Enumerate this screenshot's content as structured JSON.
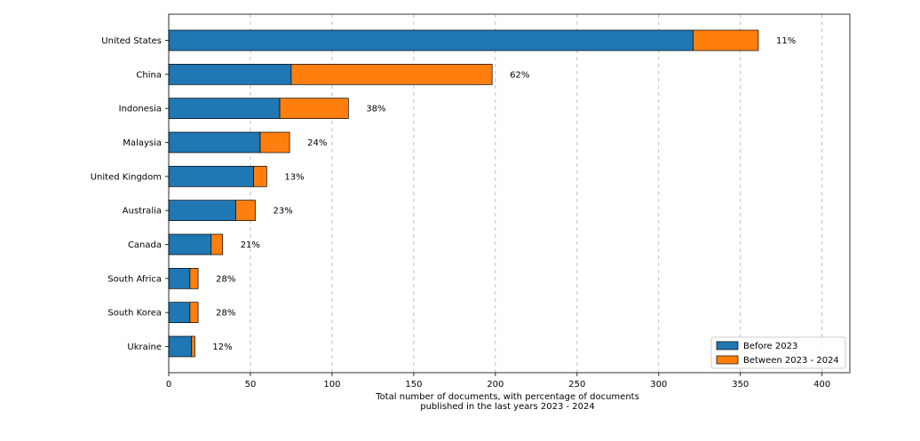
{
  "chart_data": {
    "type": "bar",
    "orientation": "horizontal",
    "stacked": true,
    "categories": [
      "United States",
      "China",
      "Indonesia",
      "Malaysia",
      "United Kingdom",
      "Australia",
      "Canada",
      "South Africa",
      "South Korea",
      "Ukraine"
    ],
    "series": [
      {
        "name": "Before 2023",
        "color": "#1f77b4",
        "values": [
          321,
          75,
          68,
          56,
          52,
          41,
          26,
          13,
          13,
          14
        ]
      },
      {
        "name": "Between 2023 - 2024",
        "color": "#ff7f0e",
        "values": [
          40,
          123,
          42,
          18,
          8,
          12,
          7,
          5,
          5,
          2
        ]
      }
    ],
    "bar_labels": [
      "11%",
      "62%",
      "38%",
      "24%",
      "13%",
      "23%",
      "21%",
      "28%",
      "28%",
      "12%"
    ],
    "x_ticks": [
      "0",
      "50",
      "100",
      "150",
      "200",
      "250",
      "300",
      "350",
      "400"
    ],
    "xlabel_lines": [
      "Total number of documents, with percentage of documents",
      "published in the last years 2023 - 2024"
    ],
    "xlim": [
      0,
      417
    ],
    "grid": "x-dashed",
    "legend_position": "bottom-right"
  }
}
